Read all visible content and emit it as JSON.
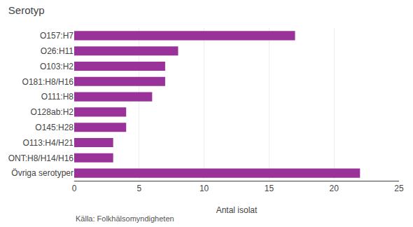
{
  "chart_data": {
    "type": "bar",
    "orientation": "horizontal",
    "title": "Serotyp",
    "xlabel": "Antal isolat",
    "annotations": [
      "Källa: Folkhälsomyndigheten"
    ],
    "categories": [
      "Övriga serotyper",
      "ONT:H8/H14/H16",
      "O113:H4/H21",
      "O145:H28",
      "O128ab:H2",
      "O111:H8",
      "O181:H8/H16",
      "O103:H2",
      "O26:H11",
      "O157:H7"
    ],
    "values": [
      22,
      3,
      3,
      4,
      4,
      6,
      7,
      7,
      8,
      17
    ],
    "color": "#993399",
    "xlim": [
      0,
      25
    ],
    "xticks": [
      0,
      5,
      10,
      15,
      20,
      25
    ],
    "grid": true
  }
}
